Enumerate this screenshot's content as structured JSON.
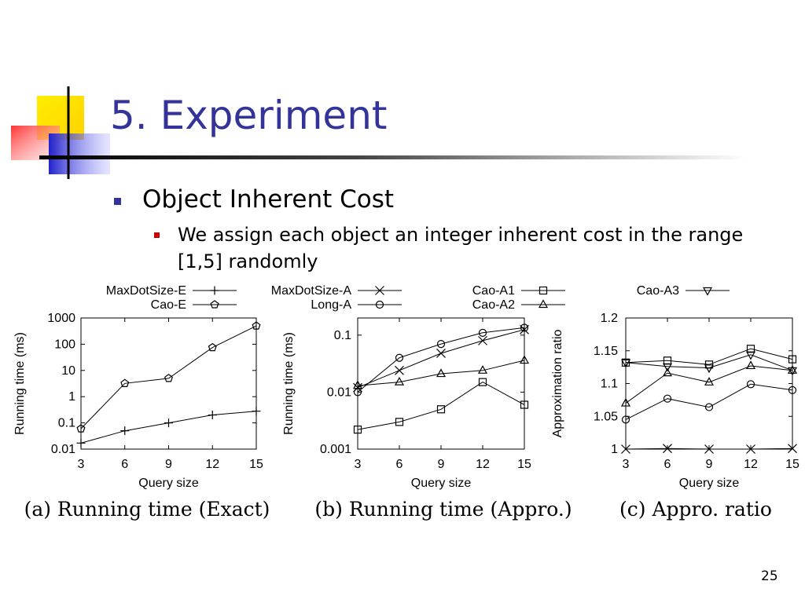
{
  "slide": {
    "title": "5. Experiment",
    "bullet_main": "Object Inherent Cost",
    "bullet_sub": "We assign each object an integer inherent cost in the range [1,5] randomly",
    "page_number": "25"
  },
  "colors": {
    "title": "#333399",
    "bullet_main": "#333399",
    "bullet_sub": "#cc0000"
  },
  "chart_data": [
    {
      "type": "line",
      "panel": "a",
      "caption": "(a) Running time (Exact)",
      "xlabel": "Query size",
      "ylabel": "Running time (ms)",
      "yscale": "log",
      "ylim": [
        0.01,
        1000
      ],
      "x": [
        3,
        6,
        9,
        12,
        15
      ],
      "xticks": [
        "3",
        "6",
        "9",
        "12",
        "15"
      ],
      "yticks": [
        {
          "v": 0.01,
          "label": "0.01"
        },
        {
          "v": 0.1,
          "label": "0.1"
        },
        {
          "v": 1,
          "label": "1"
        },
        {
          "v": 10,
          "label": "10"
        },
        {
          "v": 100,
          "label": "100"
        },
        {
          "v": 1000,
          "label": "1000"
        }
      ],
      "series": [
        {
          "name": "MaxDotSize-E",
          "marker": "plus",
          "values": [
            0.017,
            0.05,
            0.1,
            0.2,
            0.28
          ]
        },
        {
          "name": "Cao-E",
          "marker": "pentagon",
          "values": [
            0.06,
            3.2,
            5,
            75,
            500
          ]
        }
      ]
    },
    {
      "type": "line",
      "panel": "b",
      "caption": "(b) Running time (Appro.)",
      "xlabel": "Query size",
      "ylabel": "Running time (ms)",
      "yscale": "log",
      "ylim": [
        0.001,
        0.2
      ],
      "x": [
        3,
        6,
        9,
        12,
        15
      ],
      "xticks": [
        "3",
        "6",
        "9",
        "12",
        "15"
      ],
      "yticks": [
        {
          "v": 0.001,
          "label": "0.001"
        },
        {
          "v": 0.01,
          "label": "0.01"
        },
        {
          "v": 0.1,
          "label": "0.1"
        }
      ],
      "series": [
        {
          "name": "MaxDotSize-A",
          "marker": "x",
          "values": [
            0.012,
            0.024,
            0.048,
            0.08,
            0.125
          ]
        },
        {
          "name": "Long-A",
          "marker": "circle",
          "values": [
            0.01,
            0.04,
            0.07,
            0.11,
            0.135
          ]
        },
        {
          "name": "Cao-A1",
          "marker": "square",
          "values": [
            0.0022,
            0.003,
            0.005,
            0.015,
            0.006
          ]
        },
        {
          "name": "Cao-A2",
          "marker": "triangle-up",
          "values": [
            0.013,
            0.015,
            0.021,
            0.024,
            0.036
          ]
        }
      ]
    },
    {
      "type": "line",
      "panel": "c",
      "caption": "(c) Appro. ratio",
      "xlabel": "Query size",
      "ylabel": "Approximation ratio",
      "yscale": "linear",
      "ylim": [
        1,
        1.2
      ],
      "x": [
        3,
        6,
        9,
        12,
        15
      ],
      "xticks": [
        "3",
        "6",
        "9",
        "12",
        "15"
      ],
      "yticks": [
        {
          "v": 1,
          "label": "1"
        },
        {
          "v": 1.05,
          "label": "1.05"
        },
        {
          "v": 1.1,
          "label": "1.1"
        },
        {
          "v": 1.15,
          "label": "1.15"
        },
        {
          "v": 1.2,
          "label": "1.2"
        }
      ],
      "series": [
        {
          "name": "MaxDotSize-A",
          "marker": "x",
          "values": [
            1.0,
            1.001,
            1.0,
            1.0,
            1.001
          ]
        },
        {
          "name": "Long-A",
          "marker": "circle",
          "values": [
            1.045,
            1.077,
            1.064,
            1.099,
            1.09
          ]
        },
        {
          "name": "Cao-A1",
          "marker": "square",
          "values": [
            1.132,
            1.135,
            1.129,
            1.153,
            1.137
          ]
        },
        {
          "name": "Cao-A2",
          "marker": "triangle-up",
          "values": [
            1.07,
            1.116,
            1.102,
            1.127,
            1.12
          ]
        },
        {
          "name": "Cao-A3",
          "marker": "triangle-down",
          "values": [
            1.132,
            1.126,
            1.124,
            1.144,
            1.12
          ]
        }
      ]
    }
  ]
}
